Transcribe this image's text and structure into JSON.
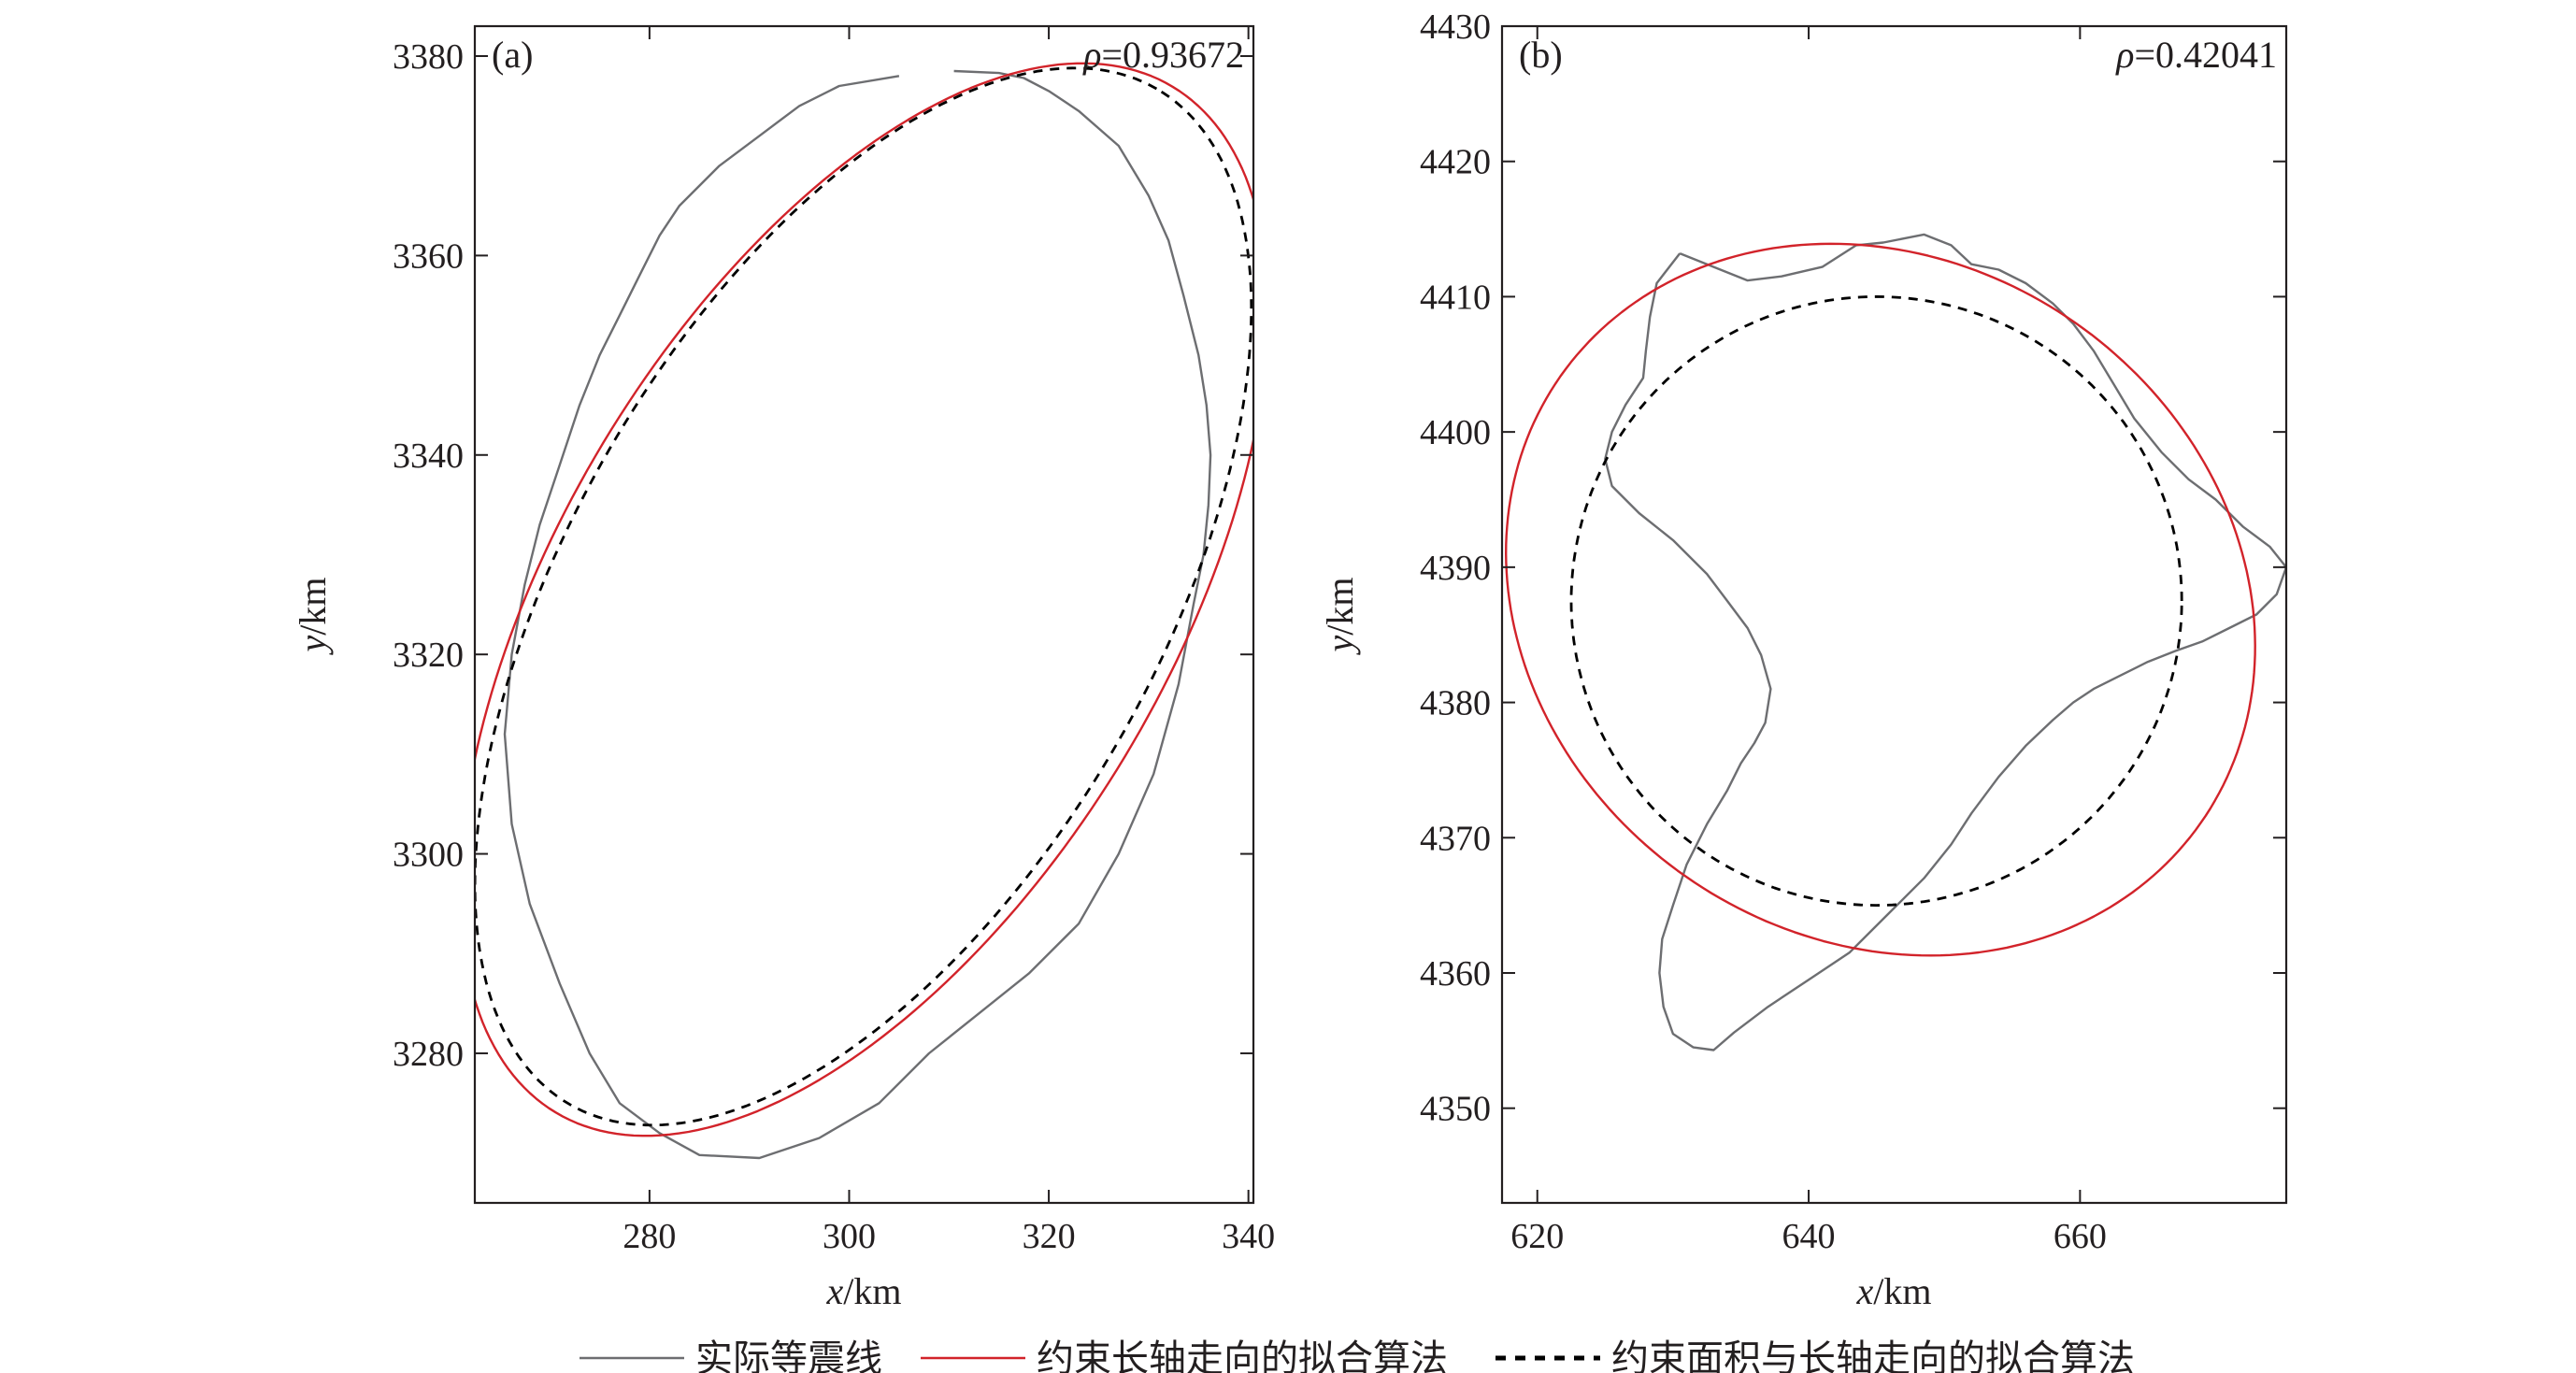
{
  "chart_data": [
    {
      "type": "line",
      "panel_label": "(a)",
      "rho_text": "ρ=0.93672",
      "xlabel": "x/km",
      "ylabel": "y/km",
      "xlim": [
        262.5,
        340.5
      ],
      "ylim": [
        3265,
        3383
      ],
      "xticks": [
        280,
        300,
        320,
        340
      ],
      "yticks": [
        3280,
        3300,
        3320,
        3340,
        3360,
        3380
      ],
      "series": [
        {
          "name": "实际等震线",
          "color": "#6d6e71",
          "style": "solid",
          "points": [
            [
              310.5,
              3378.5
            ],
            [
              315,
              3378.3
            ],
            [
              317.5,
              3377.8
            ],
            [
              320,
              3376.5
            ],
            [
              323,
              3374.5
            ],
            [
              327,
              3371
            ],
            [
              330,
              3366
            ],
            [
              332,
              3361.5
            ],
            [
              333.5,
              3356
            ],
            [
              335,
              3350
            ],
            [
              335.8,
              3345
            ],
            [
              336.2,
              3340
            ],
            [
              336,
              3335
            ],
            [
              335.5,
              3330
            ],
            [
              334.5,
              3325
            ],
            [
              333,
              3317
            ],
            [
              330.5,
              3308
            ],
            [
              327,
              3300
            ],
            [
              323,
              3293
            ],
            [
              318,
              3288
            ],
            [
              313,
              3284
            ],
            [
              308,
              3280
            ],
            [
              303,
              3275
            ],
            [
              297,
              3271.5
            ],
            [
              291,
              3269.5
            ],
            [
              285,
              3269.8
            ],
            [
              281,
              3272
            ],
            [
              277,
              3275
            ],
            [
              274,
              3280
            ],
            [
              271,
              3287
            ],
            [
              268,
              3295
            ],
            [
              266.2,
              3303
            ],
            [
              265.5,
              3312
            ],
            [
              266.2,
              3320
            ],
            [
              267.5,
              3327
            ],
            [
              269,
              3333
            ],
            [
              271,
              3339
            ],
            [
              273,
              3345
            ],
            [
              275,
              3350
            ],
            [
              277,
              3354
            ],
            [
              279,
              3358
            ],
            [
              281,
              3362
            ],
            [
              283,
              3365
            ],
            [
              287,
              3369
            ],
            [
              291,
              3372
            ],
            [
              295,
              3375
            ],
            [
              299,
              3377
            ],
            [
              305,
              3378
            ]
          ]
        },
        {
          "name": "约束长轴走向的拟合算法",
          "color": "#d2232a",
          "style": "solid",
          "ellipse": {
            "cx": 301.5,
            "cy": 3325.5,
            "a": 60.0,
            "b": 30.5,
            "angle_deg": 59
          }
        },
        {
          "name": "约束面积与长轴走向的拟合算法",
          "color": "#000000",
          "style": "dashed",
          "ellipse": {
            "cx": 301.4,
            "cy": 3325.8,
            "a": 58.8,
            "b": 29.4,
            "angle_deg": 60
          }
        }
      ]
    },
    {
      "type": "line",
      "panel_label": "(b)",
      "rho_text": "ρ=0.42041",
      "xlabel": "x/km",
      "ylabel": "y/km",
      "xlim": [
        617.4,
        675.2
      ],
      "ylim": [
        4343,
        4430
      ],
      "xticks": [
        620,
        640,
        660
      ],
      "yticks": [
        4350,
        4360,
        4370,
        4380,
        4390,
        4400,
        4410,
        4420,
        4430
      ],
      "series": [
        {
          "name": "实际等震线",
          "color": "#6d6e71",
          "style": "solid",
          "points": [
            [
              630.5,
              4413.2
            ],
            [
              633,
              4412.2
            ],
            [
              635.5,
              4411.2
            ],
            [
              638,
              4411.5
            ],
            [
              641,
              4412.2
            ],
            [
              643.5,
              4413.8
            ],
            [
              645.5,
              4414
            ],
            [
              648.5,
              4414.6
            ],
            [
              650.5,
              4413.8
            ],
            [
              652,
              4412.4
            ],
            [
              654,
              4412
            ],
            [
              656,
              4411
            ],
            [
              658,
              4409.5
            ],
            [
              659.5,
              4408
            ],
            [
              661,
              4406
            ],
            [
              662.5,
              4403.5
            ],
            [
              664,
              4401
            ],
            [
              666,
              4398.5
            ],
            [
              668,
              4396.5
            ],
            [
              670,
              4395
            ],
            [
              672,
              4393
            ],
            [
              674,
              4391.5
            ],
            [
              675.2,
              4390
            ],
            [
              674.5,
              4388
            ],
            [
              673,
              4386.5
            ],
            [
              671,
              4385.5
            ],
            [
              669,
              4384.5
            ],
            [
              667,
              4383.8
            ],
            [
              665,
              4383
            ],
            [
              663,
              4382
            ],
            [
              661,
              4381
            ],
            [
              659.5,
              4380
            ],
            [
              658,
              4378.7
            ],
            [
              656,
              4376.8
            ],
            [
              654,
              4374.5
            ],
            [
              652,
              4371.8
            ],
            [
              650.5,
              4369.5
            ],
            [
              648.5,
              4367
            ],
            [
              646,
              4364.5
            ],
            [
              643,
              4361.5
            ],
            [
              640,
              4359.5
            ],
            [
              637,
              4357.5
            ],
            [
              634.5,
              4355.6
            ],
            [
              633,
              4354.3
            ],
            [
              631.5,
              4354.5
            ],
            [
              630,
              4355.5
            ],
            [
              629.3,
              4357.5
            ],
            [
              629,
              4360
            ],
            [
              629.2,
              4362.5
            ],
            [
              630,
              4365
            ],
            [
              631,
              4368
            ],
            [
              632.5,
              4371
            ],
            [
              634,
              4373.5
            ],
            [
              635,
              4375.5
            ],
            [
              636,
              4377
            ],
            [
              636.8,
              4378.5
            ],
            [
              637.2,
              4381
            ],
            [
              636.5,
              4383.5
            ],
            [
              635.5,
              4385.5
            ],
            [
              634,
              4387.5
            ],
            [
              632.5,
              4389.5
            ],
            [
              630,
              4392
            ],
            [
              627.5,
              4394
            ],
            [
              625.5,
              4396
            ],
            [
              625,
              4398
            ],
            [
              625.5,
              4400
            ],
            [
              626.5,
              4402
            ],
            [
              627.8,
              4404
            ],
            [
              628,
              4406
            ],
            [
              628.3,
              4408.5
            ],
            [
              628.8,
              4411
            ],
            [
              630.5,
              4413.2
            ]
          ]
        },
        {
          "name": "约束长轴走向的拟合算法",
          "color": "#d2232a",
          "style": "solid",
          "ellipse": {
            "cx": 645.3,
            "cy": 4387.6,
            "a": 28.8,
            "b": 25.0,
            "angle_deg": -35
          }
        },
        {
          "name": "约束面积与长轴走向的拟合算法",
          "color": "#000000",
          "style": "dashed",
          "ellipse": {
            "cx": 645.0,
            "cy": 4387.5,
            "a": 22.5,
            "b": 22.5,
            "angle_deg": 0
          }
        }
      ]
    }
  ],
  "legend": [
    {
      "label": "实际等震线",
      "color": "#6d6e71",
      "style": "solid"
    },
    {
      "label": "约束长轴走向的拟合算法",
      "color": "#d2232a",
      "style": "solid"
    },
    {
      "label": "约束面积与长轴走向的拟合算法",
      "color": "#000000",
      "style": "dashed"
    }
  ]
}
